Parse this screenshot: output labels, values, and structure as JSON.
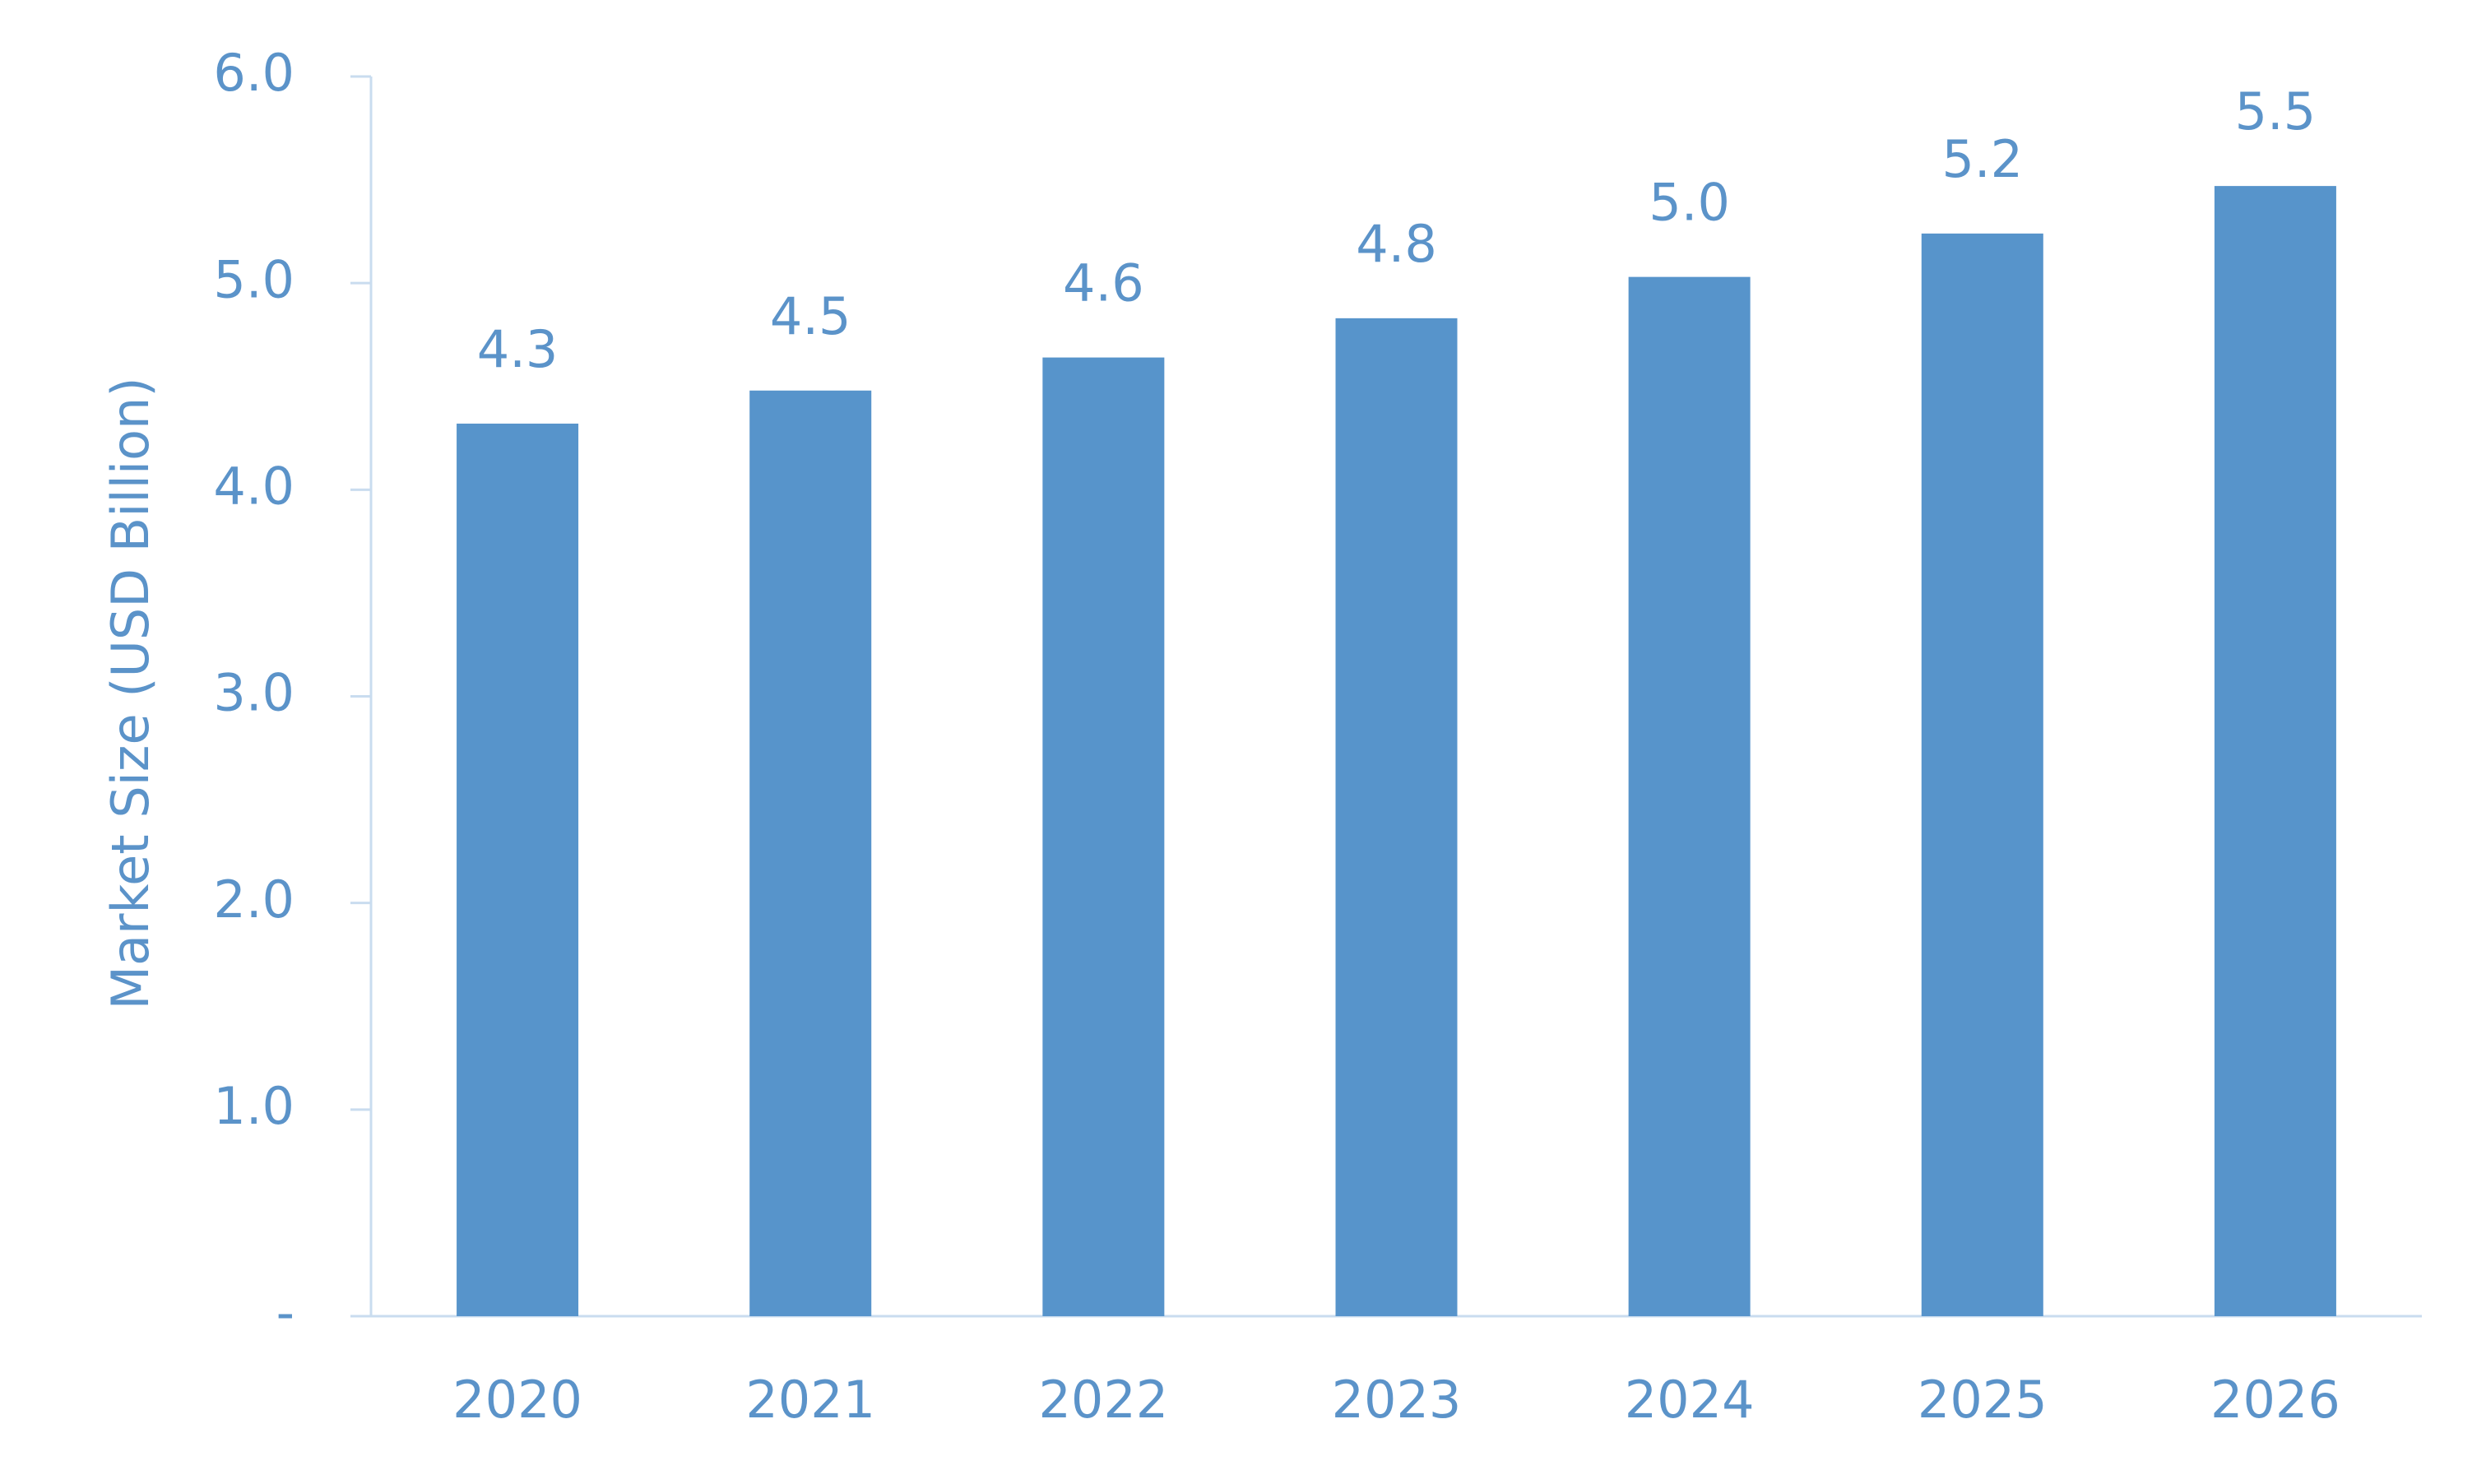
{
  "chart_data": {
    "type": "bar",
    "y_label": "Market Size (USD Billion)",
    "categories": [
      "2020",
      "2021",
      "2022",
      "2023",
      "2024",
      "2025",
      "2026"
    ],
    "values": [
      4.32,
      4.48,
      4.64,
      4.83,
      5.03,
      5.24,
      5.47
    ],
    "value_labels": [
      "4.3",
      "4.5",
      "4.6",
      "4.8",
      "5.0",
      "5.2",
      "5.5"
    ],
    "color": "#5794cb",
    "ylim": [
      0,
      6
    ],
    "yticks": [
      {
        "value": 0,
        "label": "-"
      },
      {
        "value": 1,
        "label": "1.0"
      },
      {
        "value": 2,
        "label": "2.0"
      },
      {
        "value": 3,
        "label": "3.0"
      },
      {
        "value": 4,
        "label": "4.0"
      },
      {
        "value": 5,
        "label": "5.0"
      },
      {
        "value": 6,
        "label": "6.0"
      }
    ],
    "grid": false
  }
}
